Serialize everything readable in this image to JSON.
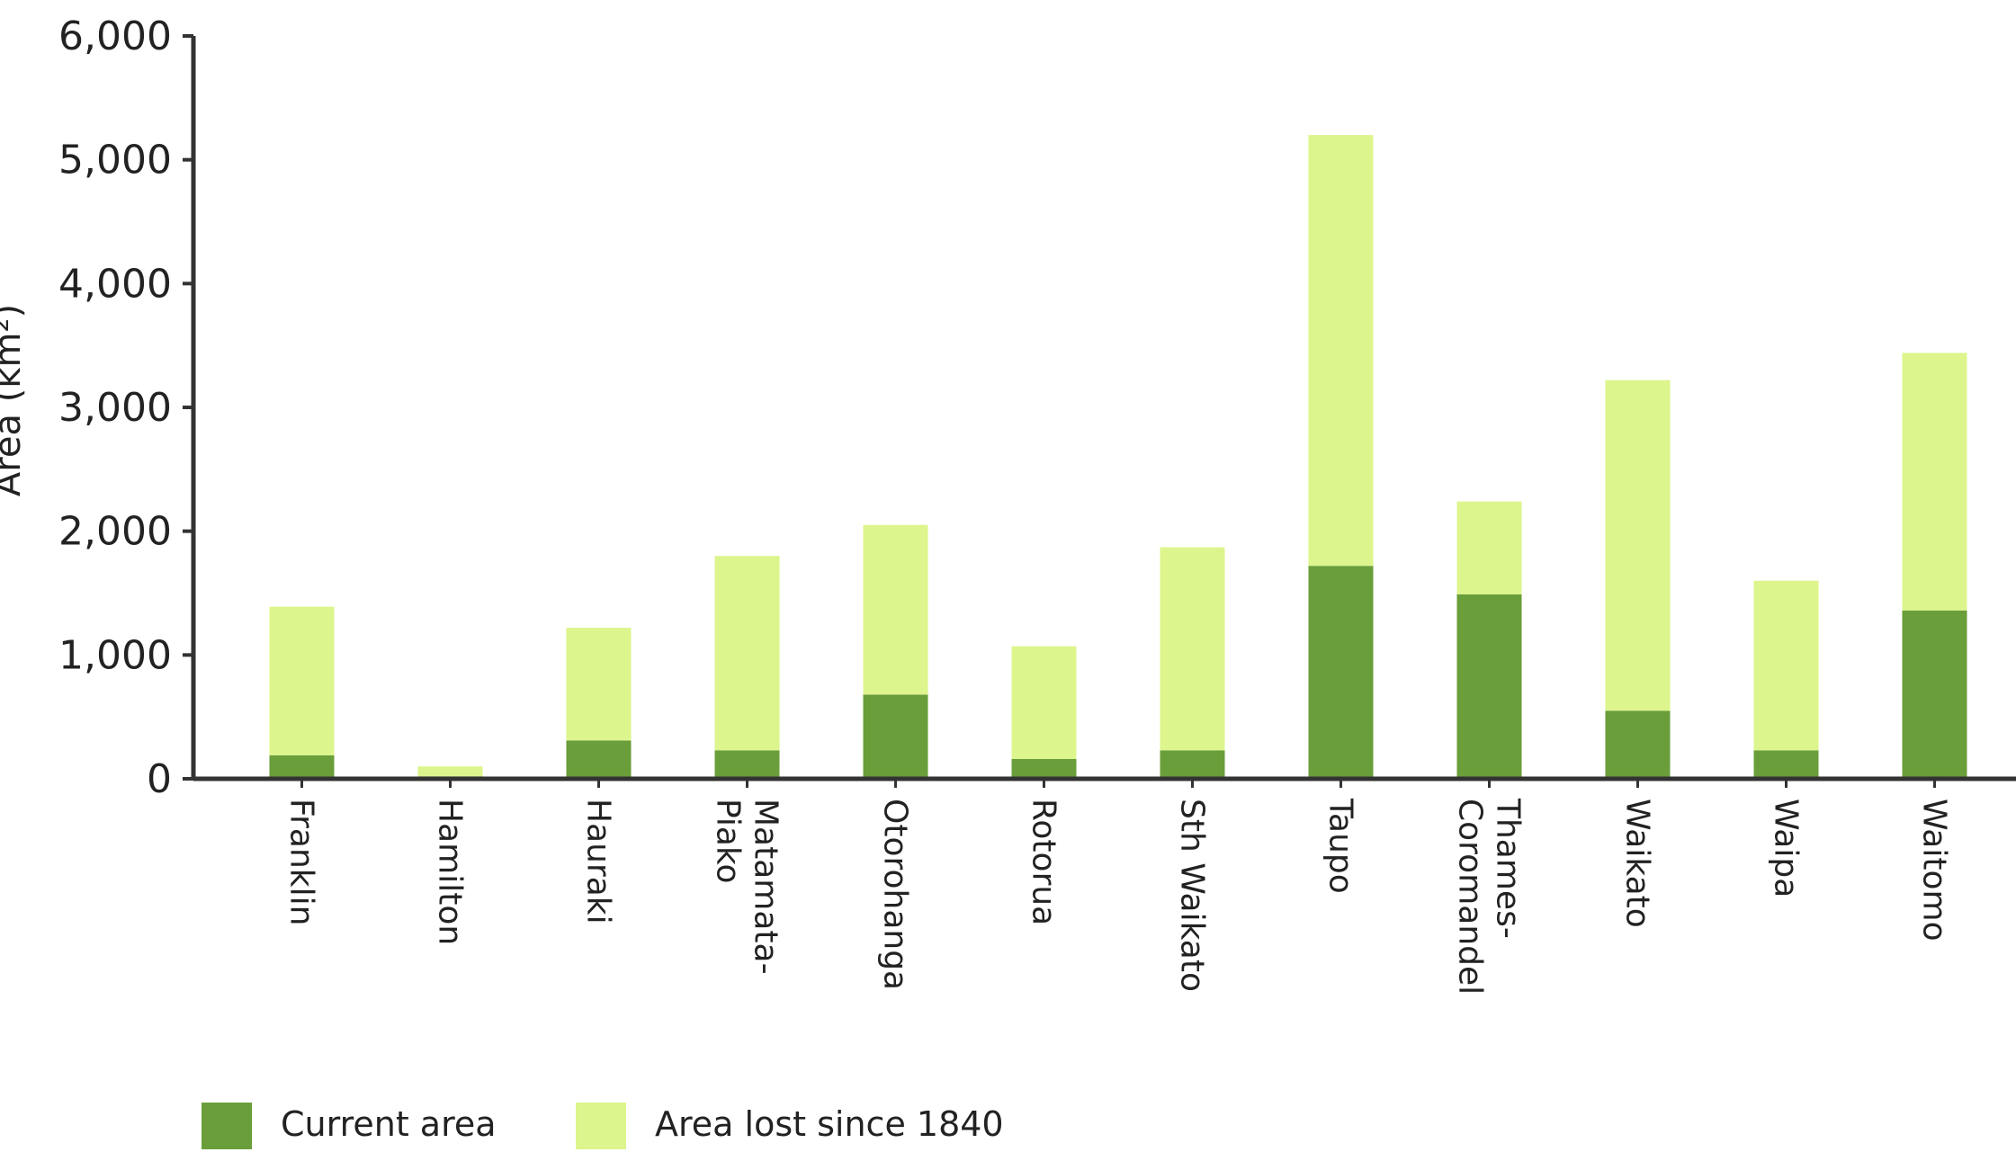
{
  "chart_data": {
    "type": "bar",
    "stacked": true,
    "title": "",
    "xlabel": "",
    "ylabel": "Area (km²)",
    "ylim": [
      0,
      6000
    ],
    "yticks": [
      0,
      1000,
      2000,
      3000,
      4000,
      5000,
      6000
    ],
    "ytick_labels": [
      "0",
      "1,000",
      "2,000",
      "3,000",
      "4,000",
      "5,000",
      "6,000"
    ],
    "categories": [
      [
        "Franklin"
      ],
      [
        "Hamilton"
      ],
      [
        "Hauraki"
      ],
      [
        "Matamata-",
        "Piako"
      ],
      [
        "Otorohanga"
      ],
      [
        "Rotorua"
      ],
      [
        "Sth Waikato"
      ],
      [
        "Taupo"
      ],
      [
        "Thames-",
        "Coromandel"
      ],
      [
        "Waikato"
      ],
      [
        "Waipa"
      ],
      [
        "Waitomo"
      ]
    ],
    "series": [
      {
        "name": "Current area",
        "color": "#6a9e3a",
        "values": [
          190,
          20,
          310,
          230,
          680,
          160,
          230,
          1720,
          1490,
          550,
          230,
          1360
        ]
      },
      {
        "name": "Area lost since 1840",
        "color": "#dcf58c",
        "values": [
          1200,
          80,
          910,
          1570,
          1370,
          910,
          1640,
          3480,
          750,
          2670,
          1370,
          2080
        ]
      }
    ],
    "grid": false,
    "legend_position": "bottom-left"
  }
}
